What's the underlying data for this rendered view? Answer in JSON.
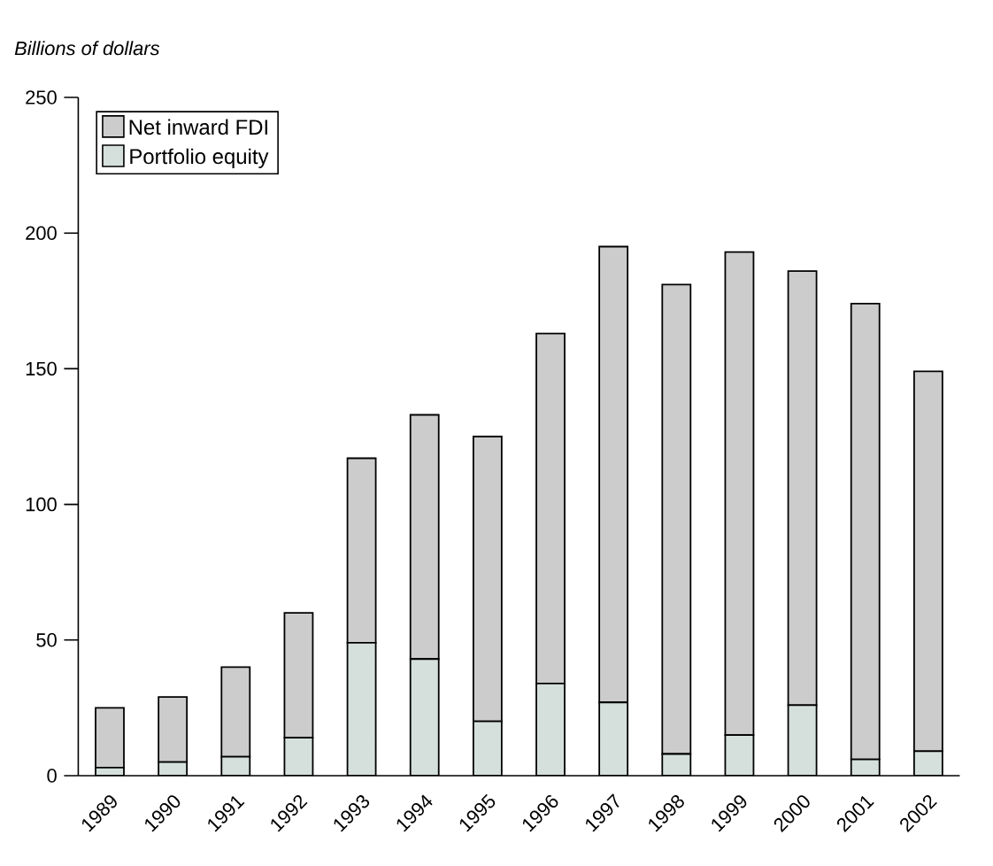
{
  "chart_data": {
    "type": "bar",
    "stacked": true,
    "ylabel": "Billions of dollars",
    "categories": [
      "1989",
      "1990",
      "1991",
      "1992",
      "1993",
      "1994",
      "1995",
      "1996",
      "1997",
      "1998",
      "1999",
      "2000",
      "2001",
      "2002"
    ],
    "series": [
      {
        "name": "Portfolio equity",
        "color": "#d5e0dc",
        "values": [
          3,
          5,
          7,
          14,
          49,
          43,
          20,
          34,
          27,
          8,
          15,
          26,
          6,
          9
        ]
      },
      {
        "name": "Net inward FDI",
        "color": "#cccccc",
        "values": [
          22,
          24,
          33,
          46,
          68,
          90,
          105,
          129,
          168,
          173,
          178,
          160,
          168,
          140
        ]
      }
    ],
    "ylim": [
      0,
      250
    ],
    "yticks": [
      0,
      50,
      100,
      150,
      200,
      250
    ],
    "legend": "top left",
    "grid": false
  }
}
